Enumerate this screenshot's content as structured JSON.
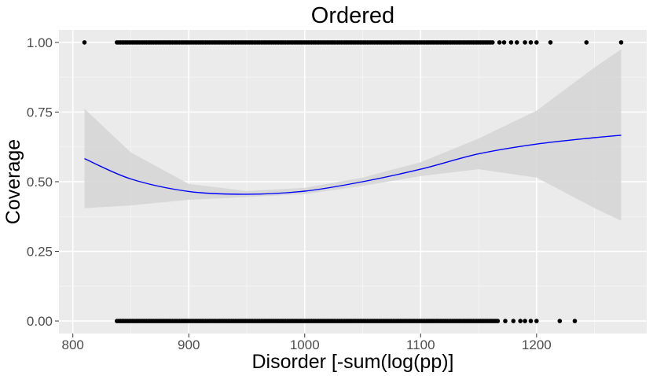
{
  "chart_data": {
    "type": "scatter",
    "title": "Ordered",
    "xlabel": "Disorder [-sum(log(pp)]",
    "ylabel": "Coverage",
    "xlim": [
      788,
      1295
    ],
    "ylim": [
      -0.045,
      1.045
    ],
    "x_ticks": [
      800,
      900,
      1000,
      1100,
      1200
    ],
    "x_tick_labels": [
      "800",
      "900",
      "1000",
      "1100",
      "1200"
    ],
    "y_ticks": [
      0,
      0.25,
      0.5,
      0.75,
      1.0
    ],
    "y_tick_labels": [
      "0.00",
      "0.25",
      "0.50",
      "0.75",
      "1.00"
    ],
    "grid": true,
    "panel_background": "#ebebeb",
    "points": {
      "y1_dense_range": [
        838,
        1162
      ],
      "y1_sparse_x": [
        810,
        1168,
        1172,
        1178,
        1183,
        1190,
        1195,
        1200,
        1212,
        1243,
        1273
      ],
      "y0_dense_range": [
        838,
        1167
      ],
      "y0_sparse_x": [
        1173,
        1180,
        1186,
        1190,
        1195,
        1200,
        1220,
        1233
      ],
      "color": "#000000"
    },
    "smooth_fit": {
      "x": [
        810,
        850,
        900,
        950,
        1000,
        1050,
        1100,
        1150,
        1200,
        1250,
        1273
      ],
      "y": [
        0.583,
        0.51,
        0.465,
        0.455,
        0.466,
        0.5,
        0.545,
        0.6,
        0.635,
        0.658,
        0.667
      ],
      "lower": [
        0.405,
        0.415,
        0.435,
        0.445,
        0.455,
        0.485,
        0.52,
        0.545,
        0.515,
        0.405,
        0.36
      ],
      "upper": [
        0.762,
        0.605,
        0.492,
        0.467,
        0.478,
        0.515,
        0.57,
        0.655,
        0.755,
        0.91,
        0.975
      ],
      "line_color": "#0000ff",
      "ribbon_color": "#d5d5d5"
    }
  }
}
